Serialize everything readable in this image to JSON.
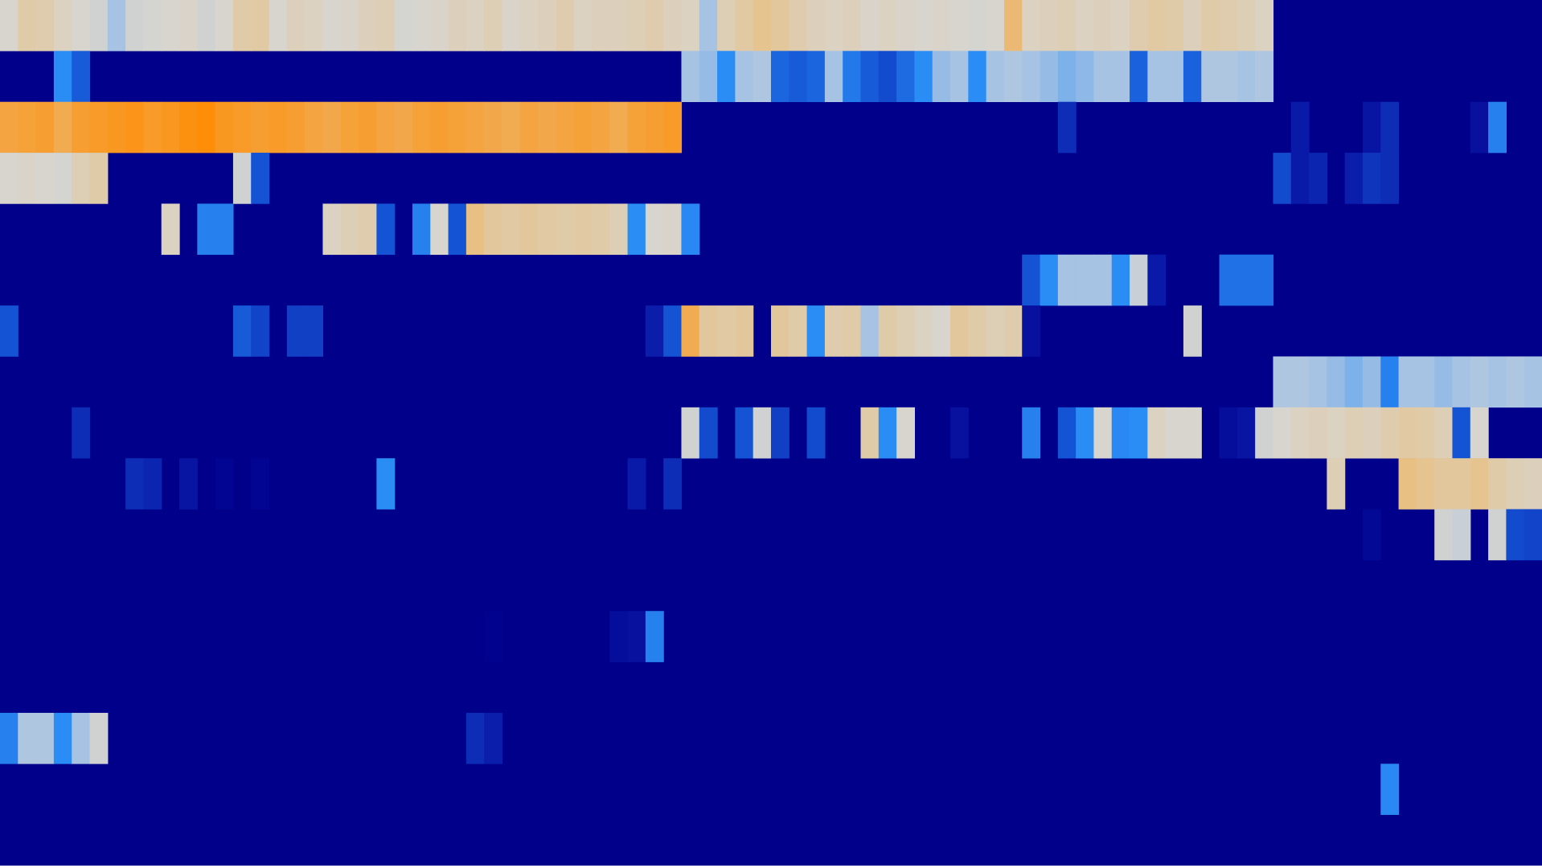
{
  "chart_data": {
    "type": "heatmap",
    "title": "",
    "xlabel": "",
    "ylabel": "",
    "n_cols": 86,
    "n_rows": 17,
    "value_range": [
      0,
      1
    ],
    "colormap": [
      {
        "stop": 0.0,
        "color": "#00008b"
      },
      {
        "stop": 0.15,
        "color": "#0a1aa8"
      },
      {
        "stop": 0.3,
        "color": "#1453d4"
      },
      {
        "stop": 0.45,
        "color": "#2a8cf5"
      },
      {
        "stop": 0.6,
        "color": "#a7c3e3"
      },
      {
        "stop": 0.72,
        "color": "#d8d5cf"
      },
      {
        "stop": 0.84,
        "color": "#e8c083"
      },
      {
        "stop": 1.0,
        "color": "#ff8a00"
      }
    ],
    "background_value": 0,
    "cells": [
      [
        0,
        0,
        0.72
      ],
      [
        0,
        1,
        0.78
      ],
      [
        0,
        2,
        0.77
      ],
      [
        0,
        3,
        0.74
      ],
      [
        0,
        4,
        0.72
      ],
      [
        0,
        5,
        0.7
      ],
      [
        0,
        6,
        0.6
      ],
      [
        0,
        7,
        0.7
      ],
      [
        0,
        8,
        0.71
      ],
      [
        0,
        9,
        0.72
      ],
      [
        0,
        10,
        0.73
      ],
      [
        0,
        11,
        0.7
      ],
      [
        0,
        12,
        0.72
      ],
      [
        0,
        13,
        0.78
      ],
      [
        0,
        14,
        0.79
      ],
      [
        0,
        15,
        0.72
      ],
      [
        0,
        16,
        0.75
      ],
      [
        0,
        17,
        0.74
      ],
      [
        0,
        18,
        0.72
      ],
      [
        0,
        19,
        0.73
      ],
      [
        0,
        20,
        0.75
      ],
      [
        0,
        21,
        0.76
      ],
      [
        0,
        22,
        0.71
      ],
      [
        0,
        23,
        0.72
      ],
      [
        0,
        24,
        0.73
      ],
      [
        0,
        25,
        0.75
      ],
      [
        0,
        26,
        0.74
      ],
      [
        0,
        27,
        0.76
      ],
      [
        0,
        28,
        0.73
      ],
      [
        0,
        29,
        0.74
      ],
      [
        0,
        30,
        0.75
      ],
      [
        0,
        31,
        0.77
      ],
      [
        0,
        32,
        0.74
      ],
      [
        0,
        33,
        0.75
      ],
      [
        0,
        34,
        0.75
      ],
      [
        0,
        35,
        0.76
      ],
      [
        0,
        36,
        0.77
      ],
      [
        0,
        37,
        0.75
      ],
      [
        0,
        38,
        0.74
      ],
      [
        0,
        39,
        0.6
      ],
      [
        0,
        40,
        0.76
      ],
      [
        0,
        41,
        0.79
      ],
      [
        0,
        42,
        0.82
      ],
      [
        0,
        43,
        0.8
      ],
      [
        0,
        44,
        0.77
      ],
      [
        0,
        45,
        0.75
      ],
      [
        0,
        46,
        0.74
      ],
      [
        0,
        47,
        0.75
      ],
      [
        0,
        48,
        0.73
      ],
      [
        0,
        49,
        0.74
      ],
      [
        0,
        50,
        0.73
      ],
      [
        0,
        51,
        0.72
      ],
      [
        0,
        52,
        0.73
      ],
      [
        0,
        53,
        0.72
      ],
      [
        0,
        54,
        0.71
      ],
      [
        0,
        55,
        0.72
      ],
      [
        0,
        56,
        0.86
      ],
      [
        0,
        57,
        0.74
      ],
      [
        0,
        58,
        0.75
      ],
      [
        0,
        59,
        0.76
      ],
      [
        0,
        60,
        0.74
      ],
      [
        0,
        61,
        0.75
      ],
      [
        0,
        62,
        0.74
      ],
      [
        0,
        63,
        0.77
      ],
      [
        0,
        64,
        0.79
      ],
      [
        0,
        65,
        0.78
      ],
      [
        0,
        66,
        0.75
      ],
      [
        0,
        67,
        0.78
      ],
      [
        0,
        68,
        0.77
      ],
      [
        0,
        69,
        0.76
      ],
      [
        0,
        70,
        0.74
      ],
      [
        1,
        3,
        0.45
      ],
      [
        1,
        4,
        0.32
      ],
      [
        1,
        38,
        0.6
      ],
      [
        1,
        39,
        0.58
      ],
      [
        1,
        40,
        0.45
      ],
      [
        1,
        41,
        0.6
      ],
      [
        1,
        42,
        0.62
      ],
      [
        1,
        43,
        0.35
      ],
      [
        1,
        44,
        0.32
      ],
      [
        1,
        45,
        0.35
      ],
      [
        1,
        46,
        0.6
      ],
      [
        1,
        47,
        0.4
      ],
      [
        1,
        48,
        0.32
      ],
      [
        1,
        49,
        0.28
      ],
      [
        1,
        50,
        0.36
      ],
      [
        1,
        51,
        0.45
      ],
      [
        1,
        52,
        0.58
      ],
      [
        1,
        53,
        0.6
      ],
      [
        1,
        54,
        0.45
      ],
      [
        1,
        55,
        0.6
      ],
      [
        1,
        56,
        0.62
      ],
      [
        1,
        57,
        0.6
      ],
      [
        1,
        58,
        0.58
      ],
      [
        1,
        59,
        0.55
      ],
      [
        1,
        60,
        0.57
      ],
      [
        1,
        61,
        0.6
      ],
      [
        1,
        62,
        0.6
      ],
      [
        1,
        63,
        0.34
      ],
      [
        1,
        64,
        0.6
      ],
      [
        1,
        65,
        0.6
      ],
      [
        1,
        66,
        0.34
      ],
      [
        1,
        67,
        0.62
      ],
      [
        1,
        68,
        0.62
      ],
      [
        1,
        69,
        0.6
      ],
      [
        1,
        70,
        0.62
      ],
      [
        2,
        0,
        0.92
      ],
      [
        2,
        1,
        0.93
      ],
      [
        2,
        2,
        0.94
      ],
      [
        2,
        3,
        0.9
      ],
      [
        2,
        4,
        0.94
      ],
      [
        2,
        5,
        0.95
      ],
      [
        2,
        6,
        0.96
      ],
      [
        2,
        7,
        0.97
      ],
      [
        2,
        8,
        0.95
      ],
      [
        2,
        9,
        0.96
      ],
      [
        2,
        10,
        0.98
      ],
      [
        2,
        11,
        0.99
      ],
      [
        2,
        12,
        0.96
      ],
      [
        2,
        13,
        0.95
      ],
      [
        2,
        14,
        0.94
      ],
      [
        2,
        15,
        0.95
      ],
      [
        2,
        16,
        0.94
      ],
      [
        2,
        17,
        0.92
      ],
      [
        2,
        18,
        0.91
      ],
      [
        2,
        19,
        0.93
      ],
      [
        2,
        20,
        0.94
      ],
      [
        2,
        21,
        0.92
      ],
      [
        2,
        22,
        0.91
      ],
      [
        2,
        23,
        0.93
      ],
      [
        2,
        24,
        0.94
      ],
      [
        2,
        25,
        0.93
      ],
      [
        2,
        26,
        0.92
      ],
      [
        2,
        27,
        0.91
      ],
      [
        2,
        28,
        0.9
      ],
      [
        2,
        29,
        0.92
      ],
      [
        2,
        30,
        0.91
      ],
      [
        2,
        31,
        0.92
      ],
      [
        2,
        32,
        0.93
      ],
      [
        2,
        33,
        0.92
      ],
      [
        2,
        34,
        0.9
      ],
      [
        2,
        35,
        0.93
      ],
      [
        2,
        36,
        0.94
      ],
      [
        2,
        37,
        0.95
      ],
      [
        2,
        59,
        0.2
      ],
      [
        2,
        72,
        0.15
      ],
      [
        2,
        76,
        0.12
      ],
      [
        2,
        77,
        0.2
      ],
      [
        2,
        82,
        0.1
      ],
      [
        2,
        83,
        0.42
      ],
      [
        3,
        0,
        0.72
      ],
      [
        3,
        1,
        0.73
      ],
      [
        3,
        2,
        0.72
      ],
      [
        3,
        3,
        0.71
      ],
      [
        3,
        4,
        0.76
      ],
      [
        3,
        5,
        0.78
      ],
      [
        3,
        13,
        0.7
      ],
      [
        3,
        14,
        0.3
      ],
      [
        3,
        71,
        0.28
      ],
      [
        3,
        72,
        0.15
      ],
      [
        3,
        73,
        0.18
      ],
      [
        3,
        75,
        0.16
      ],
      [
        3,
        76,
        0.22
      ],
      [
        3,
        77,
        0.2
      ],
      [
        4,
        9,
        0.74
      ],
      [
        4,
        11,
        0.42
      ],
      [
        4,
        12,
        0.42
      ],
      [
        4,
        18,
        0.74
      ],
      [
        4,
        19,
        0.76
      ],
      [
        4,
        20,
        0.77
      ],
      [
        4,
        21,
        0.3
      ],
      [
        4,
        23,
        0.42
      ],
      [
        4,
        24,
        0.72
      ],
      [
        4,
        25,
        0.3
      ],
      [
        4,
        26,
        0.84
      ],
      [
        4,
        27,
        0.8
      ],
      [
        4,
        28,
        0.79
      ],
      [
        4,
        29,
        0.8
      ],
      [
        4,
        30,
        0.79
      ],
      [
        4,
        31,
        0.78
      ],
      [
        4,
        32,
        0.79
      ],
      [
        4,
        33,
        0.78
      ],
      [
        4,
        34,
        0.76
      ],
      [
        4,
        35,
        0.45
      ],
      [
        4,
        36,
        0.72
      ],
      [
        4,
        37,
        0.73
      ],
      [
        4,
        38,
        0.44
      ],
      [
        5,
        57,
        0.3
      ],
      [
        5,
        58,
        0.45
      ],
      [
        5,
        59,
        0.6
      ],
      [
        5,
        60,
        0.6
      ],
      [
        5,
        61,
        0.6
      ],
      [
        5,
        62,
        0.45
      ],
      [
        5,
        63,
        0.68
      ],
      [
        5,
        64,
        0.15
      ],
      [
        5,
        68,
        0.38
      ],
      [
        5,
        69,
        0.38
      ],
      [
        5,
        70,
        0.38
      ],
      [
        6,
        0,
        0.3
      ],
      [
        6,
        13,
        0.32
      ],
      [
        6,
        14,
        0.26
      ],
      [
        6,
        16,
        0.25
      ],
      [
        6,
        17,
        0.25
      ],
      [
        6,
        36,
        0.16
      ],
      [
        6,
        37,
        0.3
      ],
      [
        6,
        38,
        0.9
      ],
      [
        6,
        39,
        0.8
      ],
      [
        6,
        40,
        0.79
      ],
      [
        6,
        41,
        0.8
      ],
      [
        6,
        43,
        0.8
      ],
      [
        6,
        44,
        0.78
      ],
      [
        6,
        45,
        0.45
      ],
      [
        6,
        46,
        0.77
      ],
      [
        6,
        47,
        0.78
      ],
      [
        6,
        48,
        0.6
      ],
      [
        6,
        49,
        0.78
      ],
      [
        6,
        50,
        0.76
      ],
      [
        6,
        51,
        0.74
      ],
      [
        6,
        52,
        0.72
      ],
      [
        6,
        53,
        0.8
      ],
      [
        6,
        54,
        0.78
      ],
      [
        6,
        55,
        0.76
      ],
      [
        6,
        56,
        0.77
      ],
      [
        6,
        57,
        0.1
      ],
      [
        6,
        66,
        0.7
      ],
      [
        7,
        71,
        0.62
      ],
      [
        7,
        72,
        0.62
      ],
      [
        7,
        73,
        0.6
      ],
      [
        7,
        74,
        0.58
      ],
      [
        7,
        75,
        0.55
      ],
      [
        7,
        76,
        0.58
      ],
      [
        7,
        77,
        0.42
      ],
      [
        7,
        78,
        0.6
      ],
      [
        7,
        79,
        0.6
      ],
      [
        7,
        80,
        0.58
      ],
      [
        7,
        81,
        0.6
      ],
      [
        7,
        82,
        0.62
      ],
      [
        7,
        83,
        0.6
      ],
      [
        7,
        84,
        0.62
      ],
      [
        7,
        85,
        0.6
      ],
      [
        8,
        4,
        0.2
      ],
      [
        8,
        38,
        0.7
      ],
      [
        8,
        39,
        0.28
      ],
      [
        8,
        41,
        0.3
      ],
      [
        8,
        42,
        0.7
      ],
      [
        8,
        43,
        0.25
      ],
      [
        8,
        45,
        0.28
      ],
      [
        8,
        48,
        0.78
      ],
      [
        8,
        49,
        0.45
      ],
      [
        8,
        50,
        0.72
      ],
      [
        8,
        53,
        0.1
      ],
      [
        8,
        57,
        0.42
      ],
      [
        8,
        59,
        0.3
      ],
      [
        8,
        60,
        0.45
      ],
      [
        8,
        61,
        0.72
      ],
      [
        8,
        62,
        0.44
      ],
      [
        8,
        63,
        0.45
      ],
      [
        8,
        64,
        0.74
      ],
      [
        8,
        65,
        0.72
      ],
      [
        8,
        66,
        0.72
      ],
      [
        8,
        68,
        0.08
      ],
      [
        8,
        69,
        0.12
      ],
      [
        8,
        70,
        0.7
      ],
      [
        8,
        71,
        0.72
      ],
      [
        8,
        72,
        0.74
      ],
      [
        8,
        73,
        0.75
      ],
      [
        8,
        74,
        0.74
      ],
      [
        8,
        75,
        0.76
      ],
      [
        8,
        76,
        0.75
      ],
      [
        8,
        77,
        0.77
      ],
      [
        8,
        78,
        0.79
      ],
      [
        8,
        79,
        0.78
      ],
      [
        8,
        80,
        0.76
      ],
      [
        8,
        81,
        0.3
      ],
      [
        8,
        82,
        0.72
      ],
      [
        9,
        7,
        0.2
      ],
      [
        9,
        8,
        0.18
      ],
      [
        9,
        10,
        0.12
      ],
      [
        9,
        12,
        0.03
      ],
      [
        9,
        14,
        0.03
      ],
      [
        9,
        21,
        0.45
      ],
      [
        9,
        35,
        0.15
      ],
      [
        9,
        37,
        0.2
      ],
      [
        9,
        74,
        0.76
      ],
      [
        9,
        78,
        0.84
      ],
      [
        9,
        79,
        0.82
      ],
      [
        9,
        80,
        0.8
      ],
      [
        9,
        81,
        0.8
      ],
      [
        9,
        82,
        0.82
      ],
      [
        9,
        83,
        0.78
      ],
      [
        9,
        84,
        0.76
      ],
      [
        9,
        85,
        0.75
      ],
      [
        10,
        76,
        0.05
      ],
      [
        10,
        80,
        0.7
      ],
      [
        10,
        81,
        0.68
      ],
      [
        10,
        83,
        0.7
      ],
      [
        10,
        84,
        0.28
      ],
      [
        10,
        85,
        0.26
      ],
      [
        12,
        27,
        0.02
      ],
      [
        12,
        34,
        0.08
      ],
      [
        12,
        35,
        0.1
      ],
      [
        12,
        36,
        0.42
      ],
      [
        14,
        0,
        0.42
      ],
      [
        14,
        1,
        0.62
      ],
      [
        14,
        2,
        0.62
      ],
      [
        14,
        3,
        0.45
      ],
      [
        14,
        4,
        0.6
      ],
      [
        14,
        5,
        0.7
      ],
      [
        14,
        26,
        0.2
      ],
      [
        14,
        27,
        0.16
      ],
      [
        15,
        77,
        0.44
      ]
    ]
  }
}
